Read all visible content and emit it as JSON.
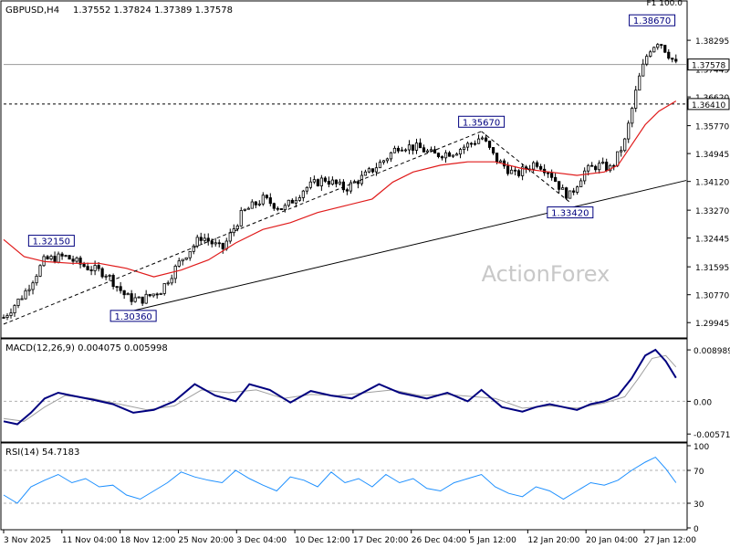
{
  "header": {
    "symbol": "GBPUSD,H4",
    "ohlc": "1.37552 1.37824 1.37389 1.37578",
    "corner_text": "F1 100.0"
  },
  "watermark": "ActionForex",
  "colors": {
    "up": "#000000",
    "down": "#000000",
    "sma": "#e01b1b",
    "macd": "#00007f",
    "signal": "#a0a0a0",
    "rsi": "#1e90ff",
    "label_border": "#00007f",
    "trendline": "#000000"
  },
  "chart_data": [
    {
      "type": "candlestick",
      "name": "price",
      "ylim": [
        1.296,
        1.39
      ],
      "y_ticks": [
        "1.38295",
        "1.37445",
        "1.36620",
        "1.35770",
        "1.34945",
        "1.34120",
        "1.33270",
        "1.32445",
        "1.31595",
        "1.30770",
        "1.29945"
      ],
      "x_tick_labels": [
        "3 Nov 2025",
        "11 Nov 04:00",
        "18 Nov 12:00",
        "25 Nov 20:00",
        "3 Dec 04:00",
        "10 Dec 12:00",
        "17 Dec 20:00",
        "26 Dec 04:00",
        "5 Jan 12:00",
        "12 Jan 20:00",
        "20 Jan 04:00",
        "27 Jan 12:00"
      ],
      "current_price_label": "1.37578",
      "current_price": 1.37578,
      "horizontal_level_label": "1.36410",
      "horizontal_level": 1.3641,
      "annotations": [
        {
          "text": "1.32150",
          "value": 1.3215,
          "bar_frac": 0.07
        },
        {
          "text": "1.30360",
          "value": 1.3036,
          "bar_frac": 0.19
        },
        {
          "text": "1.35670",
          "value": 1.3567,
          "bar_frac": 0.7
        },
        {
          "text": "1.33420",
          "value": 1.3342,
          "bar_frac": 0.83
        },
        {
          "text": "1.38670",
          "value": 1.3867,
          "bar_frac": 0.95
        }
      ],
      "close_path": [
        [
          0.0,
          1.301
        ],
        [
          0.03,
          1.308
        ],
        [
          0.06,
          1.318
        ],
        [
          0.09,
          1.319
        ],
        [
          0.12,
          1.316
        ],
        [
          0.15,
          1.314
        ],
        [
          0.18,
          1.307
        ],
        [
          0.2,
          1.306
        ],
        [
          0.23,
          1.309
        ],
        [
          0.26,
          1.318
        ],
        [
          0.29,
          1.325
        ],
        [
          0.32,
          1.321
        ],
        [
          0.35,
          1.332
        ],
        [
          0.38,
          1.336
        ],
        [
          0.41,
          1.333
        ],
        [
          0.44,
          1.339
        ],
        [
          0.47,
          1.342
        ],
        [
          0.5,
          1.339
        ],
        [
          0.53,
          1.343
        ],
        [
          0.56,
          1.348
        ],
        [
          0.58,
          1.352
        ],
        [
          0.61,
          1.351
        ],
        [
          0.63,
          1.349
        ],
        [
          0.66,
          1.35
        ],
        [
          0.69,
          1.353
        ],
        [
          0.7,
          1.3545
        ],
        [
          0.72,
          1.348
        ],
        [
          0.75,
          1.343
        ],
        [
          0.78,
          1.347
        ],
        [
          0.8,
          1.344
        ],
        [
          0.82,
          1.338
        ],
        [
          0.83,
          1.337
        ],
        [
          0.85,
          1.344
        ],
        [
          0.87,
          1.346
        ],
        [
          0.89,
          1.345
        ],
        [
          0.91,
          1.353
        ],
        [
          0.92,
          1.362
        ],
        [
          0.93,
          1.371
        ],
        [
          0.945,
          1.38
        ],
        [
          0.96,
          1.383
        ],
        [
          0.97,
          1.38
        ],
        [
          0.985,
          1.3758
        ]
      ],
      "sma_path": [
        [
          0.0,
          1.324
        ],
        [
          0.03,
          1.319
        ],
        [
          0.06,
          1.3175
        ],
        [
          0.1,
          1.317
        ],
        [
          0.14,
          1.317
        ],
        [
          0.18,
          1.3155
        ],
        [
          0.22,
          1.313
        ],
        [
          0.26,
          1.315
        ],
        [
          0.3,
          1.318
        ],
        [
          0.34,
          1.323
        ],
        [
          0.38,
          1.327
        ],
        [
          0.42,
          1.329
        ],
        [
          0.46,
          1.332
        ],
        [
          0.5,
          1.334
        ],
        [
          0.54,
          1.336
        ],
        [
          0.57,
          1.341
        ],
        [
          0.6,
          1.344
        ],
        [
          0.64,
          1.346
        ],
        [
          0.68,
          1.347
        ],
        [
          0.72,
          1.347
        ],
        [
          0.76,
          1.345
        ],
        [
          0.8,
          1.344
        ],
        [
          0.84,
          1.343
        ],
        [
          0.88,
          1.344
        ],
        [
          0.9,
          1.346
        ],
        [
          0.92,
          1.352
        ],
        [
          0.94,
          1.358
        ],
        [
          0.96,
          1.362
        ],
        [
          0.985,
          1.365
        ]
      ],
      "trendlines": [
        {
          "from": [
            0.19,
            1.303
          ],
          "to": [
            1.0,
            1.3415
          ],
          "style": "solid"
        },
        {
          "from": [
            0.0,
            1.299
          ],
          "to": [
            0.7,
            1.356
          ],
          "style": "dashed"
        },
        {
          "from": [
            0.7,
            1.356
          ],
          "to": [
            0.83,
            1.335
          ],
          "style": "dashed"
        }
      ]
    },
    {
      "type": "line",
      "name": "MACD(12,26,9)",
      "label": "MACD(12,26,9) 0.004075 0.005998",
      "ylim": [
        -0.0068,
        0.0098
      ],
      "y_ticks": [
        "0.008989",
        "0.00",
        "-0.005715"
      ],
      "y_tick_values": [
        0.008989,
        0.0,
        -0.005715
      ],
      "zero_line": 0.0,
      "macd_path": [
        [
          0.0,
          -0.0035
        ],
        [
          0.02,
          -0.004
        ],
        [
          0.04,
          -0.002
        ],
        [
          0.06,
          0.0005
        ],
        [
          0.08,
          0.0015
        ],
        [
          0.1,
          0.001
        ],
        [
          0.13,
          0.0003
        ],
        [
          0.16,
          -0.0005
        ],
        [
          0.19,
          -0.002
        ],
        [
          0.22,
          -0.0015
        ],
        [
          0.25,
          0.0
        ],
        [
          0.28,
          0.003
        ],
        [
          0.31,
          0.001
        ],
        [
          0.34,
          0.0
        ],
        [
          0.36,
          0.003
        ],
        [
          0.39,
          0.002
        ],
        [
          0.42,
          -0.0002
        ],
        [
          0.45,
          0.0018
        ],
        [
          0.48,
          0.001
        ],
        [
          0.51,
          0.0005
        ],
        [
          0.55,
          0.003
        ],
        [
          0.58,
          0.0015
        ],
        [
          0.62,
          0.0005
        ],
        [
          0.65,
          0.0015
        ],
        [
          0.68,
          0.0
        ],
        [
          0.7,
          0.002
        ],
        [
          0.73,
          -0.001
        ],
        [
          0.76,
          -0.0018
        ],
        [
          0.78,
          -0.001
        ],
        [
          0.8,
          -0.0005
        ],
        [
          0.82,
          -0.001
        ],
        [
          0.84,
          -0.0015
        ],
        [
          0.86,
          -0.0005
        ],
        [
          0.88,
          0.0
        ],
        [
          0.9,
          0.001
        ],
        [
          0.92,
          0.004
        ],
        [
          0.94,
          0.008
        ],
        [
          0.955,
          0.009
        ],
        [
          0.97,
          0.007
        ],
        [
          0.985,
          0.0041
        ]
      ],
      "signal_path": [
        [
          0.0,
          -0.003
        ],
        [
          0.03,
          -0.0035
        ],
        [
          0.06,
          -0.001
        ],
        [
          0.09,
          0.001
        ],
        [
          0.13,
          0.0005
        ],
        [
          0.17,
          -0.0005
        ],
        [
          0.21,
          -0.0015
        ],
        [
          0.25,
          -0.0008
        ],
        [
          0.29,
          0.002
        ],
        [
          0.33,
          0.0015
        ],
        [
          0.37,
          0.002
        ],
        [
          0.41,
          0.0005
        ],
        [
          0.45,
          0.0012
        ],
        [
          0.49,
          0.001
        ],
        [
          0.53,
          0.0015
        ],
        [
          0.57,
          0.002
        ],
        [
          0.61,
          0.001
        ],
        [
          0.65,
          0.0012
        ],
        [
          0.69,
          0.0008
        ],
        [
          0.72,
          0.0005
        ],
        [
          0.76,
          -0.0012
        ],
        [
          0.8,
          -0.0008
        ],
        [
          0.84,
          -0.0012
        ],
        [
          0.88,
          -0.0003
        ],
        [
          0.91,
          0.0008
        ],
        [
          0.93,
          0.004
        ],
        [
          0.95,
          0.0075
        ],
        [
          0.97,
          0.008
        ],
        [
          0.985,
          0.006
        ]
      ]
    },
    {
      "type": "line",
      "name": "RSI(14)",
      "label": "RSI(14) 54.7183",
      "ylim": [
        0,
        100
      ],
      "y_ticks": [
        "100",
        "70",
        "30",
        "0"
      ],
      "y_tick_values": [
        100,
        70,
        30,
        0
      ],
      "levels": [
        70,
        30
      ],
      "rsi_path": [
        [
          0.0,
          40
        ],
        [
          0.02,
          30
        ],
        [
          0.04,
          50
        ],
        [
          0.06,
          58
        ],
        [
          0.08,
          65
        ],
        [
          0.1,
          55
        ],
        [
          0.12,
          60
        ],
        [
          0.14,
          50
        ],
        [
          0.16,
          52
        ],
        [
          0.18,
          40
        ],
        [
          0.2,
          35
        ],
        [
          0.22,
          45
        ],
        [
          0.24,
          55
        ],
        [
          0.26,
          68
        ],
        [
          0.28,
          62
        ],
        [
          0.3,
          58
        ],
        [
          0.32,
          55
        ],
        [
          0.34,
          70
        ],
        [
          0.36,
          60
        ],
        [
          0.38,
          52
        ],
        [
          0.4,
          45
        ],
        [
          0.42,
          62
        ],
        [
          0.44,
          58
        ],
        [
          0.46,
          50
        ],
        [
          0.48,
          68
        ],
        [
          0.5,
          55
        ],
        [
          0.52,
          60
        ],
        [
          0.54,
          50
        ],
        [
          0.56,
          65
        ],
        [
          0.58,
          55
        ],
        [
          0.6,
          60
        ],
        [
          0.62,
          48
        ],
        [
          0.64,
          45
        ],
        [
          0.66,
          55
        ],
        [
          0.68,
          60
        ],
        [
          0.7,
          65
        ],
        [
          0.72,
          50
        ],
        [
          0.74,
          42
        ],
        [
          0.76,
          38
        ],
        [
          0.78,
          50
        ],
        [
          0.8,
          45
        ],
        [
          0.82,
          35
        ],
        [
          0.84,
          45
        ],
        [
          0.86,
          55
        ],
        [
          0.88,
          52
        ],
        [
          0.9,
          58
        ],
        [
          0.92,
          70
        ],
        [
          0.94,
          80
        ],
        [
          0.955,
          86
        ],
        [
          0.97,
          72
        ],
        [
          0.985,
          55
        ]
      ]
    }
  ]
}
